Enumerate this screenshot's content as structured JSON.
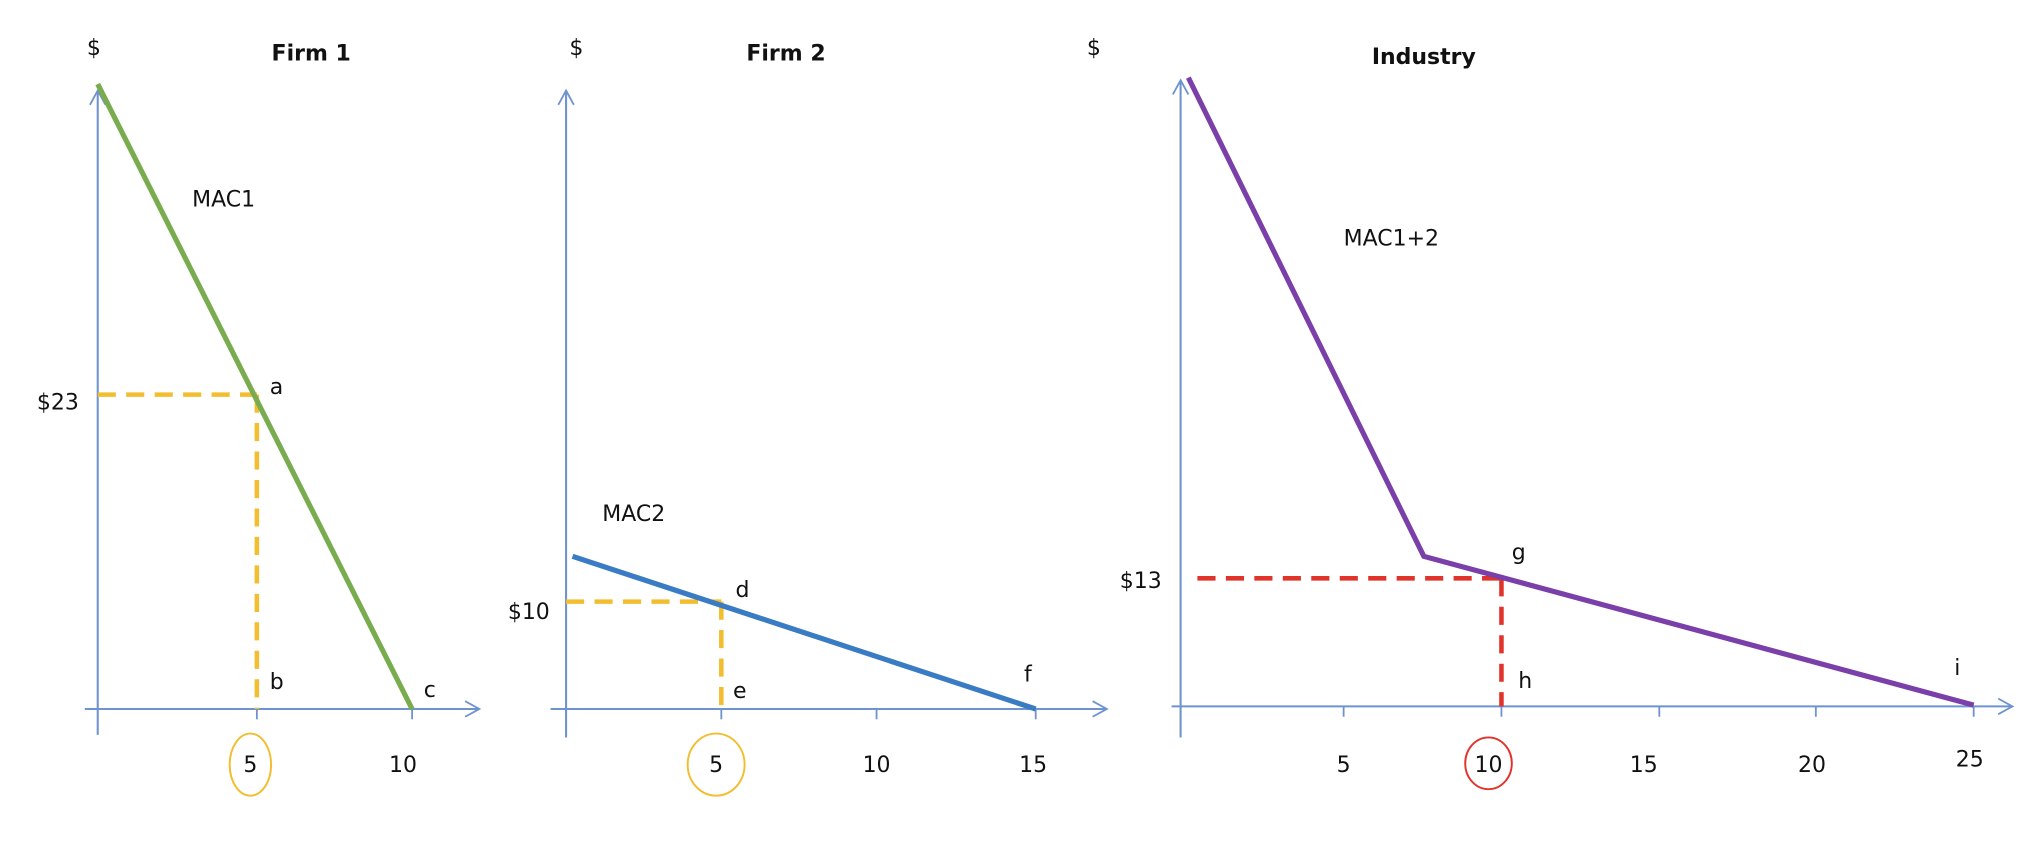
{
  "panels": [
    {
      "dollar": "$",
      "title": "Firm 1",
      "curve_label": "MAC1",
      "price_label": "$23",
      "points": [
        "a",
        "b",
        "c"
      ],
      "x_ticks": [
        "5",
        "10"
      ]
    },
    {
      "dollar": "$",
      "title": "Firm 2",
      "curve_label": "MAC2",
      "price_label": "$10",
      "points": [
        "d",
        "e",
        "f"
      ],
      "x_ticks": [
        "5",
        "10",
        "15"
      ]
    },
    {
      "dollar": "$",
      "title": "Industry",
      "curve_label": "MAC1+2",
      "price_label": "$13",
      "points": [
        "g",
        "h",
        "i"
      ],
      "x_ticks": [
        "5",
        "10",
        "15",
        "20",
        "25"
      ]
    }
  ]
}
